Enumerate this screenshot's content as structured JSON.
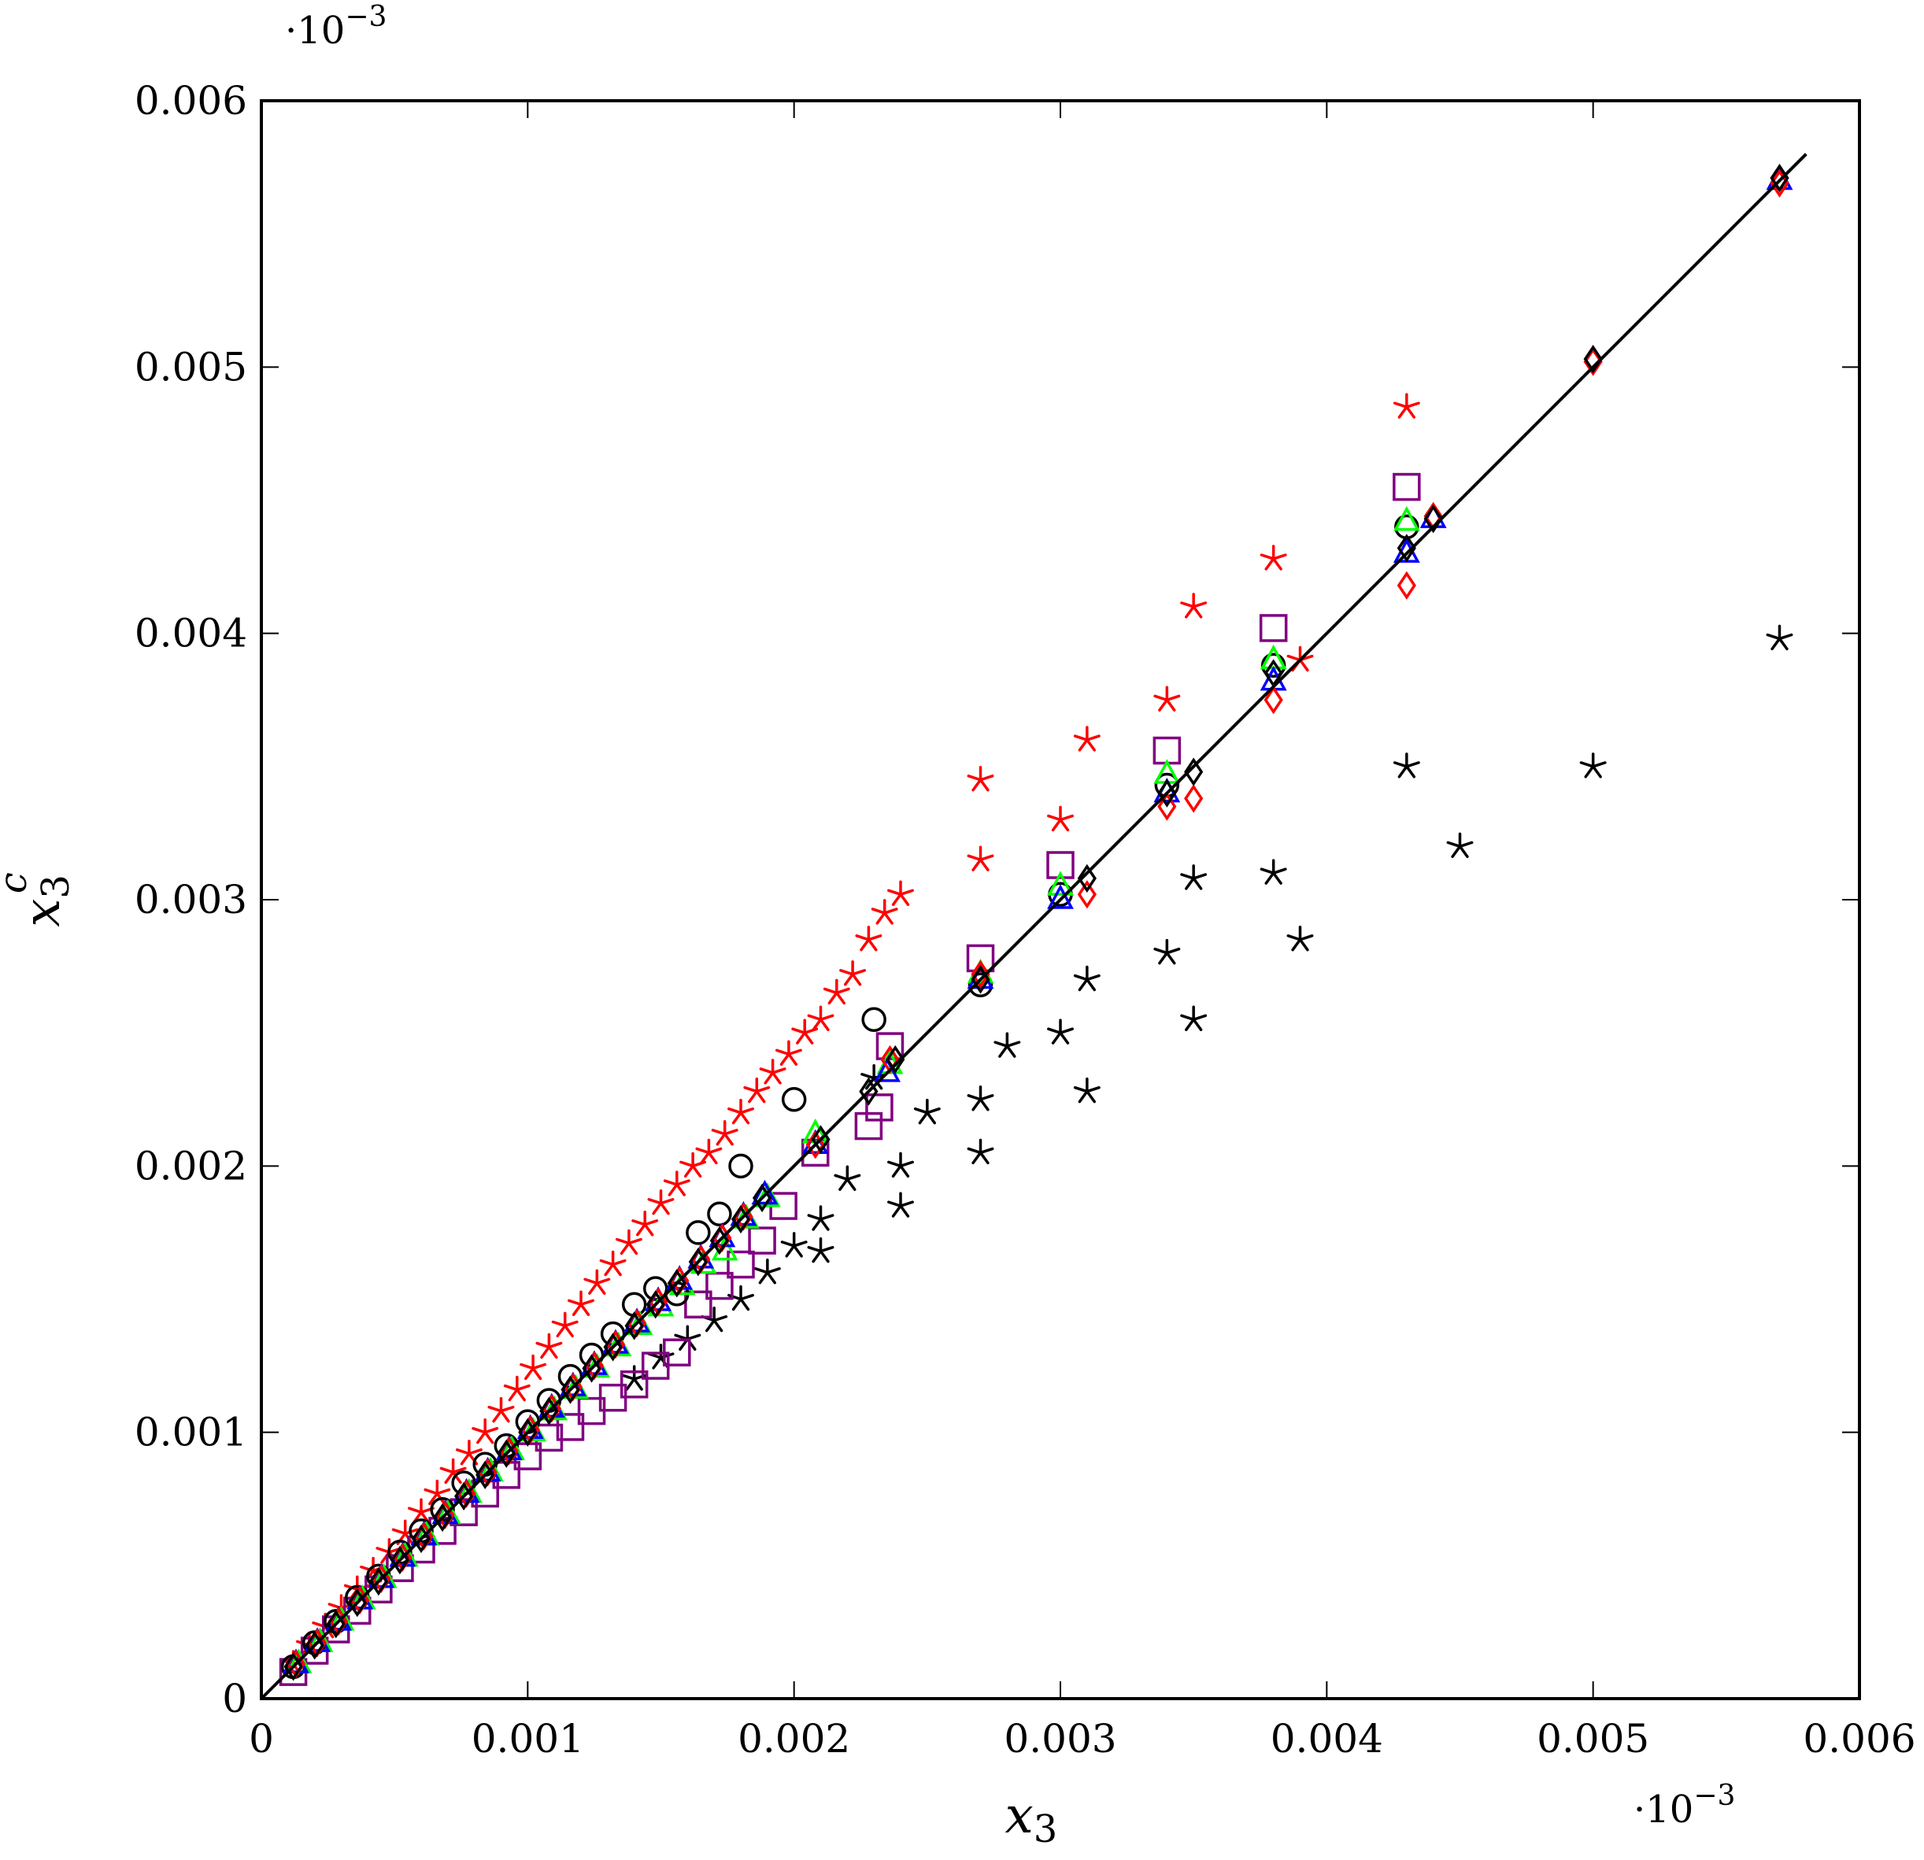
{
  "chart_data": {
    "type": "scatter",
    "title": "",
    "xlabel": "x_3",
    "ylabel": "x_3^c",
    "x_multiplier": "·10",
    "y_multiplier": "·10",
    "multiplier_exponent": "−3",
    "xlim": [
      0,
      0.006
    ],
    "ylim": [
      0,
      0.006
    ],
    "x_ticks": [
      "0",
      "0.001",
      "0.002",
      "0.003",
      "0.004",
      "0.005",
      "0.006"
    ],
    "y_ticks": [
      "0",
      "0.001",
      "0.002",
      "0.003",
      "0.004",
      "0.005",
      "0.006"
    ],
    "grid": false,
    "legend": "none",
    "reference_line": {
      "x": [
        0,
        0.0058
      ],
      "y": [
        0,
        0.0058
      ],
      "color": "#000000"
    },
    "series": [
      {
        "marker": "star",
        "color": "#ff0000",
        "x": [
          0.00012,
          0.00018,
          0.00024,
          0.0003,
          0.00036,
          0.00042,
          0.00048,
          0.00054,
          0.0006,
          0.00066,
          0.00072,
          0.00078,
          0.00084,
          0.0009,
          0.00096,
          0.00102,
          0.00108,
          0.00114,
          0.0012,
          0.00126,
          0.00132,
          0.00138,
          0.00144,
          0.0015,
          0.00156,
          0.00162,
          0.00168,
          0.00174,
          0.0018,
          0.00186,
          0.00192,
          0.00198,
          0.00204,
          0.0021,
          0.00216,
          0.00222,
          0.00228,
          0.00234,
          0.0024,
          0.0027,
          0.0027,
          0.003,
          0.0031,
          0.0034,
          0.0035,
          0.0038,
          0.0039,
          0.0043
        ],
        "y": [
          0.00013,
          0.0002,
          0.00027,
          0.00034,
          0.00041,
          0.00048,
          0.00055,
          0.00062,
          0.0007,
          0.00077,
          0.00085,
          0.00092,
          0.001,
          0.00108,
          0.00116,
          0.00124,
          0.00132,
          0.0014,
          0.00148,
          0.00156,
          0.00163,
          0.00171,
          0.00178,
          0.00186,
          0.00193,
          0.002,
          0.00205,
          0.00212,
          0.0022,
          0.00228,
          0.00235,
          0.00242,
          0.0025,
          0.00255,
          0.00265,
          0.00272,
          0.00285,
          0.00295,
          0.00302,
          0.00315,
          0.00345,
          0.0033,
          0.0036,
          0.00375,
          0.0041,
          0.00428,
          0.0039,
          0.00485
        ]
      },
      {
        "marker": "star",
        "color": "#000000",
        "x": [
          0.0014,
          0.0015,
          0.0016,
          0.0017,
          0.0018,
          0.0019,
          0.002,
          0.0021,
          0.0021,
          0.0022,
          0.0023,
          0.0024,
          0.0024,
          0.0025,
          0.0027,
          0.0027,
          0.0028,
          0.003,
          0.0031,
          0.0031,
          0.0034,
          0.0035,
          0.0035,
          0.0038,
          0.0039,
          0.0043,
          0.0045,
          0.005,
          0.0057
        ],
        "y": [
          0.0012,
          0.00128,
          0.00135,
          0.00142,
          0.0015,
          0.0016,
          0.0017,
          0.00168,
          0.0018,
          0.00195,
          0.00233,
          0.00185,
          0.002,
          0.0022,
          0.00205,
          0.00225,
          0.00245,
          0.0025,
          0.00228,
          0.0027,
          0.0028,
          0.00255,
          0.00308,
          0.0031,
          0.00285,
          0.0035,
          0.0032,
          0.0035,
          0.00398
        ]
      },
      {
        "marker": "square",
        "color": "#800080",
        "x": [
          0.00012,
          0.0002,
          0.00028,
          0.00036,
          0.00044,
          0.00052,
          0.0006,
          0.00068,
          0.00076,
          0.00084,
          0.00092,
          0.001,
          0.00108,
          0.00116,
          0.00124,
          0.00132,
          0.0014,
          0.00148,
          0.00156,
          0.00164,
          0.00172,
          0.0018,
          0.00188,
          0.00196,
          0.00208,
          0.00228,
          0.00232,
          0.00236,
          0.0027,
          0.003,
          0.0034,
          0.0038,
          0.0043
        ],
        "y": [
          0.0001,
          0.00018,
          0.00026,
          0.00033,
          0.00041,
          0.00049,
          0.00056,
          0.00063,
          0.0007,
          0.00077,
          0.00084,
          0.00091,
          0.00098,
          0.00102,
          0.00108,
          0.00113,
          0.00118,
          0.00125,
          0.0013,
          0.00148,
          0.00155,
          0.00163,
          0.00172,
          0.00185,
          0.00205,
          0.00215,
          0.00222,
          0.00245,
          0.00278,
          0.00313,
          0.00356,
          0.00402,
          0.00455
        ]
      },
      {
        "marker": "circle",
        "color": "#000000",
        "x": [
          0.00012,
          0.0002,
          0.00028,
          0.00036,
          0.00044,
          0.00052,
          0.0006,
          0.00068,
          0.00076,
          0.00084,
          0.00092,
          0.001,
          0.00108,
          0.00116,
          0.00124,
          0.00132,
          0.0014,
          0.00148,
          0.00156,
          0.00164,
          0.00172,
          0.0018,
          0.002,
          0.0023,
          0.0027,
          0.003,
          0.0034,
          0.0038,
          0.0043
        ],
        "y": [
          0.00012,
          0.00021,
          0.00029,
          0.00038,
          0.00046,
          0.00055,
          0.00063,
          0.00071,
          0.00081,
          0.00088,
          0.00095,
          0.00104,
          0.00112,
          0.00121,
          0.00129,
          0.00137,
          0.00148,
          0.00154,
          0.00152,
          0.00175,
          0.00182,
          0.002,
          0.00225,
          0.00255,
          0.00268,
          0.00302,
          0.00343,
          0.00388,
          0.0044
        ]
      },
      {
        "marker": "triangle",
        "color": "#00ff00",
        "x": [
          0.00014,
          0.00022,
          0.0003,
          0.00038,
          0.00046,
          0.00054,
          0.00062,
          0.0007,
          0.00078,
          0.00086,
          0.00094,
          0.00102,
          0.0011,
          0.00118,
          0.00126,
          0.00134,
          0.00142,
          0.0015,
          0.00158,
          0.00166,
          0.00174,
          0.00182,
          0.0019,
          0.00208,
          0.00236,
          0.0027,
          0.003,
          0.0034,
          0.0038,
          0.0043
        ],
        "y": [
          0.00013,
          0.00021,
          0.00029,
          0.00037,
          0.00045,
          0.00053,
          0.00061,
          0.00069,
          0.00077,
          0.00085,
          0.00093,
          0.001,
          0.00108,
          0.00116,
          0.00124,
          0.00132,
          0.0014,
          0.00147,
          0.00155,
          0.00163,
          0.00168,
          0.0018,
          0.00188,
          0.00212,
          0.00238,
          0.00272,
          0.00305,
          0.00347,
          0.0039,
          0.00442
        ]
      },
      {
        "marker": "triangle",
        "color": "#0000ff",
        "x": [
          0.00013,
          0.00021,
          0.00029,
          0.00037,
          0.00045,
          0.00053,
          0.00061,
          0.00069,
          0.00077,
          0.00085,
          0.00093,
          0.00101,
          0.00109,
          0.00117,
          0.00125,
          0.00133,
          0.00141,
          0.00149,
          0.00157,
          0.00165,
          0.00173,
          0.00181,
          0.00189,
          0.00208,
          0.00235,
          0.0027,
          0.003,
          0.0034,
          0.0038,
          0.0043,
          0.0044,
          0.0057
        ],
        "y": [
          0.00013,
          0.00021,
          0.00029,
          0.00037,
          0.00045,
          0.00053,
          0.00061,
          0.00069,
          0.00077,
          0.00085,
          0.00093,
          0.00101,
          0.00109,
          0.00117,
          0.00125,
          0.00133,
          0.00141,
          0.00149,
          0.00157,
          0.00165,
          0.00173,
          0.00181,
          0.00189,
          0.00208,
          0.00235,
          0.0027,
          0.003,
          0.0034,
          0.00382,
          0.0043,
          0.00443,
          0.0057
        ]
      },
      {
        "marker": "diamond",
        "color": "#ff0000",
        "x": [
          0.00013,
          0.00021,
          0.00029,
          0.00037,
          0.00045,
          0.00053,
          0.00061,
          0.00069,
          0.00077,
          0.00085,
          0.00093,
          0.00101,
          0.00109,
          0.00117,
          0.00125,
          0.00133,
          0.00141,
          0.00149,
          0.00157,
          0.00165,
          0.00173,
          0.00181,
          0.00208,
          0.00236,
          0.0027,
          0.0031,
          0.0034,
          0.0035,
          0.0038,
          0.0043,
          0.0044,
          0.005,
          0.0057
        ],
        "y": [
          0.00013,
          0.00021,
          0.00029,
          0.00037,
          0.00045,
          0.00053,
          0.00061,
          0.00069,
          0.00077,
          0.00085,
          0.00093,
          0.00101,
          0.00109,
          0.00117,
          0.00125,
          0.00133,
          0.00141,
          0.00149,
          0.00157,
          0.00165,
          0.00173,
          0.00181,
          0.00208,
          0.0024,
          0.00272,
          0.00302,
          0.00335,
          0.00338,
          0.00375,
          0.00418,
          0.00444,
          0.00502,
          0.00569
        ]
      },
      {
        "marker": "diamond",
        "color": "#000000",
        "x": [
          0.00012,
          0.0002,
          0.00028,
          0.00036,
          0.00044,
          0.00052,
          0.0006,
          0.00068,
          0.00076,
          0.00084,
          0.00092,
          0.001,
          0.00108,
          0.00116,
          0.00124,
          0.00132,
          0.0014,
          0.00148,
          0.00156,
          0.00164,
          0.00172,
          0.0018,
          0.00188,
          0.0021,
          0.00228,
          0.00238,
          0.0027,
          0.0031,
          0.0034,
          0.0035,
          0.0038,
          0.0043,
          0.0044,
          0.005,
          0.0057
        ],
        "y": [
          0.00012,
          0.0002,
          0.00028,
          0.00036,
          0.00044,
          0.00052,
          0.0006,
          0.00068,
          0.00076,
          0.00084,
          0.00092,
          0.001,
          0.00108,
          0.00116,
          0.00124,
          0.00132,
          0.0014,
          0.00148,
          0.00156,
          0.00164,
          0.00172,
          0.0018,
          0.00188,
          0.0021,
          0.00228,
          0.0024,
          0.0027,
          0.00308,
          0.0034,
          0.00348,
          0.00385,
          0.00432,
          0.00443,
          0.00503,
          0.00571
        ]
      }
    ]
  }
}
